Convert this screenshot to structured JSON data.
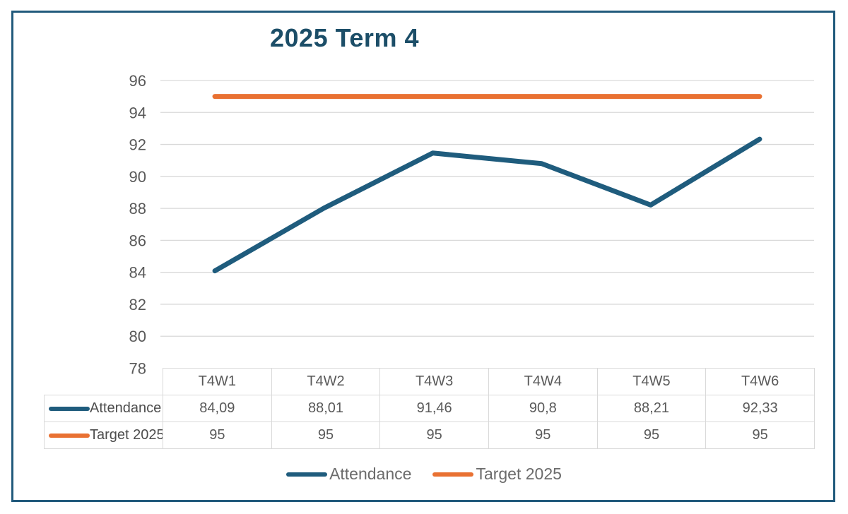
{
  "style": {
    "background": "#FFFFFF",
    "frame_border": "#215A7C",
    "title_color": "#1C4E68",
    "grid_color": "#D9D9D9",
    "axis_label_color": "#595959",
    "table_border": "#D9D9D9",
    "table_text": "#595959",
    "row_label_text": "#4D4D4D",
    "legend_text": "#6B6B6B",
    "attendance_color": "#1F5C7D",
    "target_color": "#E97132"
  },
  "chart_data": {
    "type": "line",
    "title": "2025 Term 4",
    "categories": [
      "T4W1",
      "T4W2",
      "T4W3",
      "T4W4",
      "T4W5",
      "T4W6"
    ],
    "series": [
      {
        "name": "Attendance",
        "color": "#1F5C7D",
        "values": [
          84.09,
          88.01,
          91.46,
          90.8,
          88.21,
          92.33
        ],
        "display_values": [
          "84,09",
          "88,01",
          "91,46",
          "90,8",
          "88,21",
          "92,33"
        ]
      },
      {
        "name": "Target 2025",
        "color": "#E97132",
        "values": [
          95,
          95,
          95,
          95,
          95,
          95
        ],
        "display_values": [
          "95",
          "95",
          "95",
          "95",
          "95",
          "95"
        ]
      }
    ],
    "ylim": [
      78,
      96
    ],
    "yticks": [
      96,
      94,
      92,
      90,
      88,
      86,
      84,
      82,
      80,
      78
    ],
    "xlabel": "",
    "ylabel": "",
    "grid": true,
    "legend_position": "bottom",
    "data_table_shown": true
  }
}
